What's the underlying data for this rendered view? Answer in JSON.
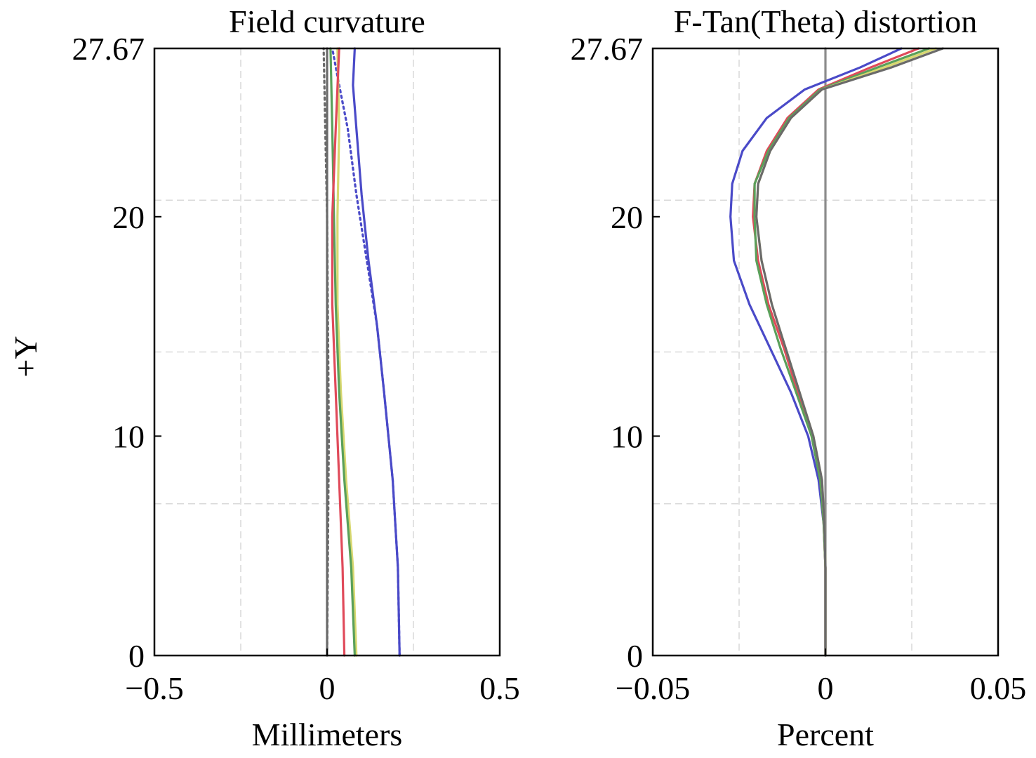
{
  "colors": {
    "wl1": "#4a4ac8",
    "wl2": "#5aa05a",
    "wl3": "#e04a5a",
    "wl4": "#d8d870",
    "wl5": "#6a6a6a",
    "zero_line": "#8c8c8c",
    "grid": "#d9d9d9"
  },
  "y_axis_label": "+Y",
  "chart_data": [
    {
      "type": "line",
      "title": "Field curvature",
      "xlabel": "Millimeters",
      "ylabel": "+Y",
      "xlim": [
        -0.5,
        0.5
      ],
      "ylim": [
        0,
        27.67
      ],
      "x_ticks": [
        -0.5,
        0,
        0.5
      ],
      "x_tick_labels": [
        "−0.5",
        "0",
        "0.5"
      ],
      "y_ticks": [
        0,
        10,
        20,
        27.67
      ],
      "y_tick_labels": [
        "0",
        "10",
        "20",
        "27.67"
      ],
      "grid": true,
      "series": [
        {
          "color_key": "wl1",
          "dash": "solid",
          "points": [
            [
              0.21,
              0
            ],
            [
              0.205,
              4
            ],
            [
              0.19,
              8
            ],
            [
              0.165,
              12
            ],
            [
              0.145,
              15
            ],
            [
              0.12,
              18
            ],
            [
              0.1,
              21
            ],
            [
              0.085,
              24
            ],
            [
              0.075,
              26
            ],
            [
              0.08,
              27.67
            ]
          ]
        },
        {
          "color_key": "wl1",
          "dash": "dotted",
          "points": [
            [
              0.21,
              0
            ],
            [
              0.205,
              4
            ],
            [
              0.19,
              8
            ],
            [
              0.165,
              12
            ],
            [
              0.145,
              15
            ],
            [
              0.115,
              18
            ],
            [
              0.085,
              21
            ],
            [
              0.06,
              24
            ],
            [
              0.035,
              26
            ],
            [
              0.015,
              27.67
            ]
          ]
        },
        {
          "color_key": "wl4",
          "dash": "solid",
          "points": [
            [
              0.085,
              0
            ],
            [
              0.075,
              4
            ],
            [
              0.055,
              8
            ],
            [
              0.04,
              12
            ],
            [
              0.03,
              16
            ],
            [
              0.03,
              20
            ],
            [
              0.035,
              24
            ],
            [
              0.03,
              27.67
            ]
          ]
        },
        {
          "color_key": "wl2",
          "dash": "solid",
          "points": [
            [
              0.08,
              0
            ],
            [
              0.07,
              4
            ],
            [
              0.05,
              8
            ],
            [
              0.035,
              12
            ],
            [
              0.025,
              16
            ],
            [
              0.02,
              20
            ],
            [
              0.015,
              24
            ],
            [
              0.01,
              27.67
            ]
          ]
        },
        {
          "color_key": "wl3",
          "dash": "solid",
          "points": [
            [
              0.05,
              0
            ],
            [
              0.045,
              4
            ],
            [
              0.035,
              8
            ],
            [
              0.025,
              12
            ],
            [
              0.015,
              16
            ],
            [
              0.015,
              20
            ],
            [
              0.025,
              24
            ],
            [
              0.035,
              27.67
            ]
          ]
        },
        {
          "color_key": "wl5",
          "dash": "solid",
          "points": [
            [
              0,
              0
            ],
            [
              0,
              27.67
            ]
          ]
        },
        {
          "color_key": "wl5",
          "dash": "dotted",
          "points": [
            [
              0,
              0
            ],
            [
              0.005,
              10
            ],
            [
              0.0,
              20
            ],
            [
              -0.01,
              27.67
            ]
          ]
        }
      ]
    },
    {
      "type": "line",
      "title": "F-Tan(Theta) distortion",
      "xlabel": "Percent",
      "ylabel": "",
      "xlim": [
        -0.05,
        0.05
      ],
      "ylim": [
        0,
        27.67
      ],
      "x_ticks": [
        -0.05,
        0,
        0.05
      ],
      "x_tick_labels": [
        "−0.05",
        "0",
        "0.05"
      ],
      "y_ticks": [
        0,
        10,
        20,
        27.67
      ],
      "y_tick_labels": [
        "0",
        "10",
        "20",
        "27.67"
      ],
      "grid": true,
      "series": [
        {
          "color_key": "zero_line",
          "dash": "solid",
          "points": [
            [
              0,
              0
            ],
            [
              0,
              27.67
            ]
          ]
        },
        {
          "color_key": "wl1",
          "dash": "solid",
          "points": [
            [
              0,
              0
            ],
            [
              0,
              4
            ],
            [
              -0.0005,
              6
            ],
            [
              -0.002,
              8
            ],
            [
              -0.005,
              10
            ],
            [
              -0.01,
              12
            ],
            [
              -0.016,
              14
            ],
            [
              -0.022,
              16
            ],
            [
              -0.0265,
              18
            ],
            [
              -0.0275,
              20
            ],
            [
              -0.027,
              21.5
            ],
            [
              -0.024,
              23
            ],
            [
              -0.017,
              24.5
            ],
            [
              -0.006,
              25.8
            ],
            [
              0.01,
              26.8
            ],
            [
              0.022,
              27.67
            ]
          ]
        },
        {
          "color_key": "wl3",
          "dash": "solid",
          "points": [
            [
              0,
              0
            ],
            [
              0,
              4
            ],
            [
              -0.0005,
              6
            ],
            [
              -0.0015,
              8
            ],
            [
              -0.004,
              10
            ],
            [
              -0.008,
              12
            ],
            [
              -0.012,
              14
            ],
            [
              -0.0165,
              16
            ],
            [
              -0.0195,
              18
            ],
            [
              -0.021,
              20
            ],
            [
              -0.0205,
              21.5
            ],
            [
              -0.017,
              23
            ],
            [
              -0.011,
              24.5
            ],
            [
              -0.002,
              25.8
            ],
            [
              0.013,
              26.8
            ],
            [
              0.027,
              27.67
            ]
          ]
        },
        {
          "color_key": "wl2",
          "dash": "solid",
          "points": [
            [
              0,
              0
            ],
            [
              0,
              4
            ],
            [
              -0.0005,
              6
            ],
            [
              -0.0015,
              8
            ],
            [
              -0.004,
              10
            ],
            [
              -0.0085,
              12
            ],
            [
              -0.013,
              14
            ],
            [
              -0.017,
              16
            ],
            [
              -0.02,
              18
            ],
            [
              -0.0205,
              20
            ],
            [
              -0.0205,
              21.5
            ],
            [
              -0.0165,
              23
            ],
            [
              -0.0105,
              24.5
            ],
            [
              -0.0015,
              25.8
            ],
            [
              0.015,
              26.8
            ],
            [
              0.03,
              27.67
            ]
          ]
        },
        {
          "color_key": "wl4",
          "dash": "solid",
          "points": [
            [
              0,
              0
            ],
            [
              0,
              4
            ],
            [
              -0.0003,
              6
            ],
            [
              -0.001,
              8
            ],
            [
              -0.0035,
              10
            ],
            [
              -0.0075,
              12
            ],
            [
              -0.0115,
              14
            ],
            [
              -0.0155,
              16
            ],
            [
              -0.0185,
              18
            ],
            [
              -0.02,
              20
            ],
            [
              -0.0195,
              21.5
            ],
            [
              -0.016,
              23
            ],
            [
              -0.01,
              24.5
            ],
            [
              -0.001,
              25.8
            ],
            [
              0.017,
              26.8
            ],
            [
              0.032,
              27.67
            ]
          ]
        },
        {
          "color_key": "wl5",
          "dash": "solid",
          "points": [
            [
              0,
              0
            ],
            [
              0,
              4
            ],
            [
              -0.0003,
              6
            ],
            [
              -0.001,
              8
            ],
            [
              -0.0035,
              10
            ],
            [
              -0.0075,
              12
            ],
            [
              -0.0115,
              14
            ],
            [
              -0.0155,
              16
            ],
            [
              -0.0185,
              18
            ],
            [
              -0.02,
              20
            ],
            [
              -0.0195,
              21.5
            ],
            [
              -0.016,
              23
            ],
            [
              -0.01,
              24.5
            ],
            [
              -0.001,
              25.8
            ],
            [
              0.019,
              26.8
            ],
            [
              0.034,
              27.67
            ]
          ]
        }
      ]
    }
  ]
}
